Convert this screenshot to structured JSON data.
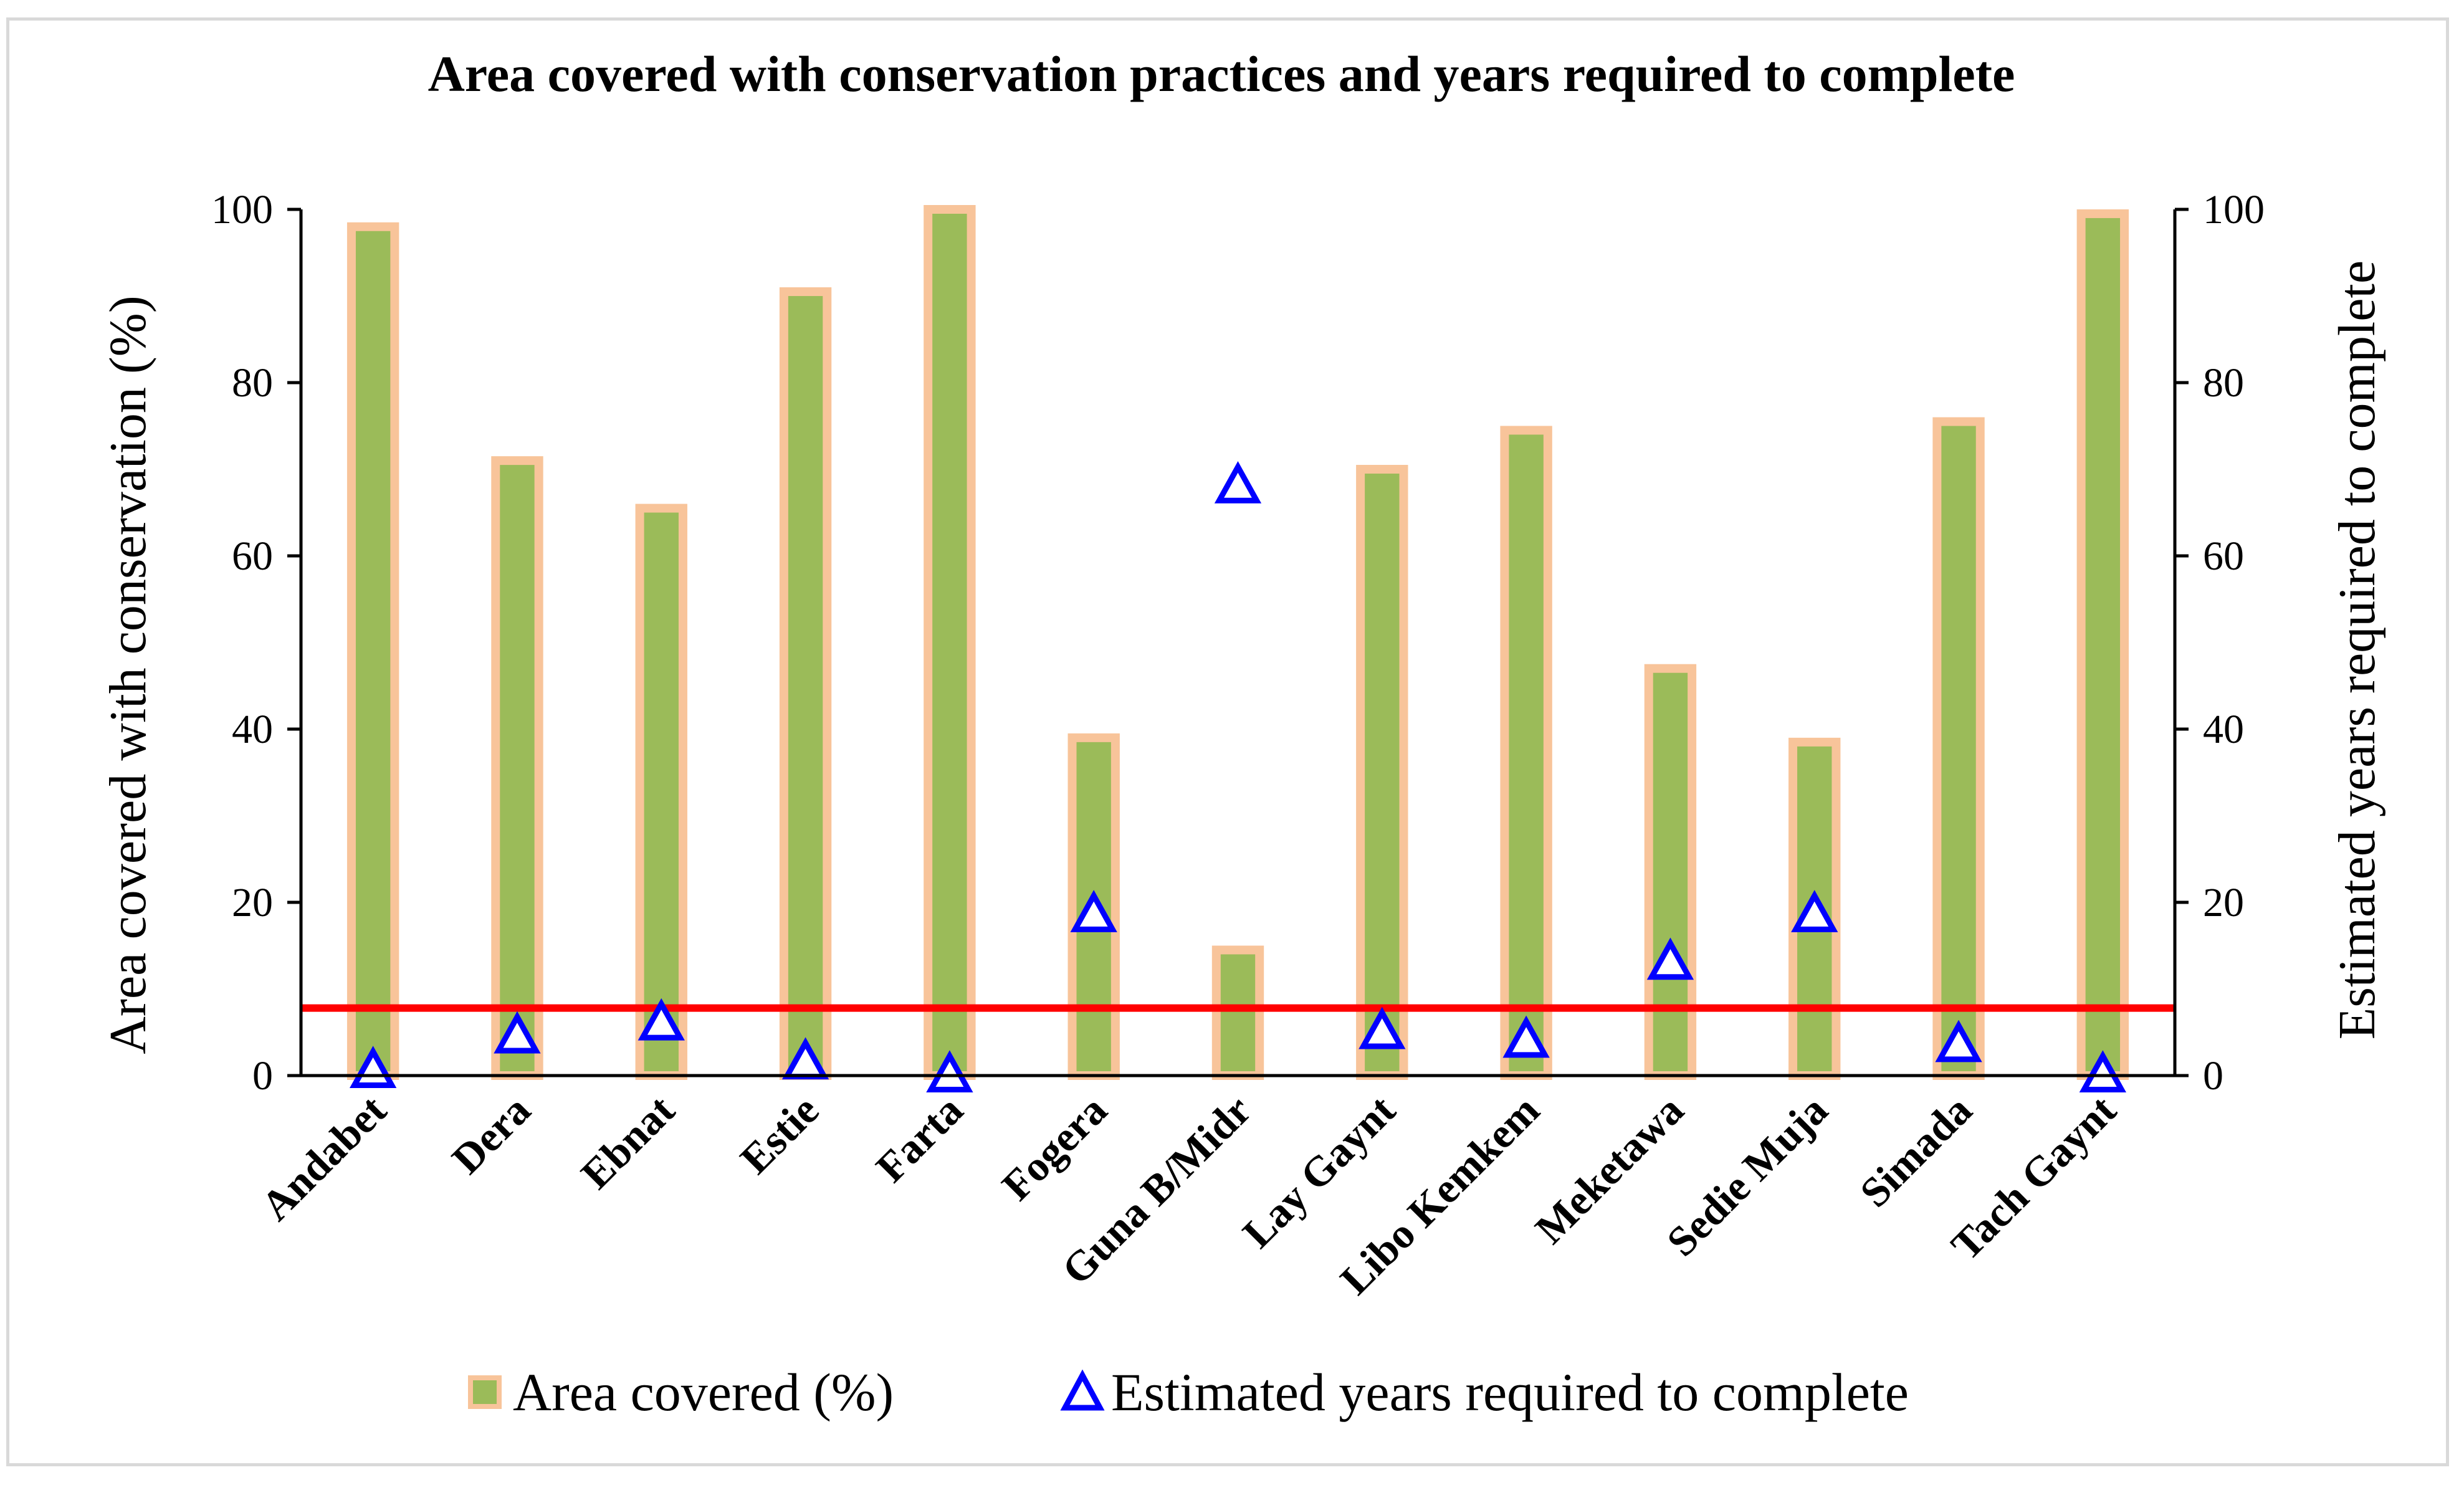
{
  "chart_data": {
    "type": "bar",
    "title": "Area covered with conservation practices and years required to complete",
    "categories": [
      "Andabet",
      "Dera",
      "Ebnat",
      "Estie",
      "Farta",
      "Fogera",
      "Guna B/Midr",
      "Lay Gaynt",
      "Libo Kemkem",
      "Meketawa",
      "Sedie Muja",
      "Simada",
      "Tach Gaynt"
    ],
    "series": [
      {
        "name": "Area covered (%)",
        "kind": "bar",
        "axis": "left",
        "fill": "#9bbb59",
        "stroke": "#f8c49a",
        "values": [
          98,
          71,
          65.5,
          90.5,
          100,
          39,
          14.5,
          70,
          74.5,
          47,
          38.5,
          75.5,
          99.5
        ]
      },
      {
        "name": "Estimated years required to complete",
        "kind": "marker",
        "marker": "triangle-open",
        "axis": "right",
        "color": "#0000ff",
        "values": [
          0.5,
          4.5,
          6,
          1.5,
          0,
          18.5,
          68,
          5,
          4,
          13,
          18.5,
          3.5,
          0
        ]
      }
    ],
    "reference_line": {
      "value": 7.8,
      "color": "#ff0000"
    },
    "ylabel": "Area covered with conservation (%)",
    "ylabel_right": "Estimated years required to complete",
    "ylim": [
      0,
      100
    ],
    "ylim_right": [
      0,
      100
    ],
    "yticks": [
      "0",
      "20",
      "40",
      "60",
      "80",
      "100"
    ],
    "yticks_right": [
      "0",
      "20",
      "40",
      "60",
      "80",
      "100"
    ],
    "legend": [
      "Area covered (%)",
      "Estimated years required to complete"
    ],
    "legend_position": "bottom"
  }
}
